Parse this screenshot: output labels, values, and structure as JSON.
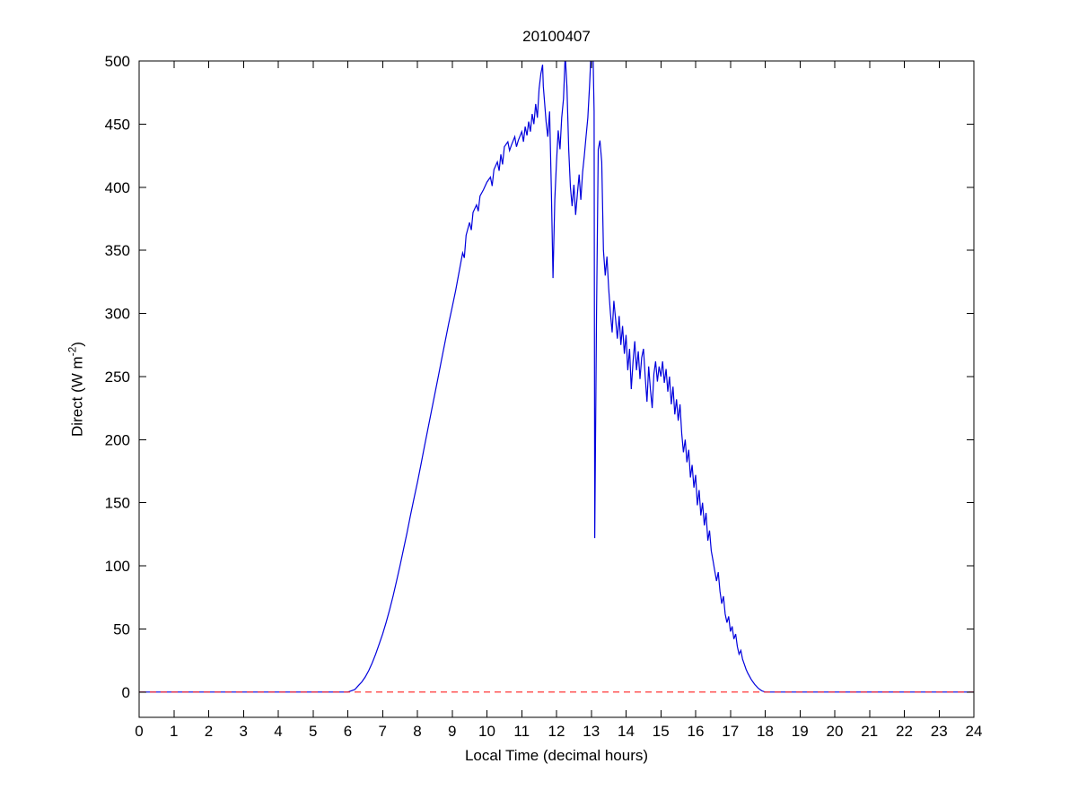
{
  "figure": {
    "ylabel_pre": "Direct (W m",
    "ylabel_sup": "-2",
    "ylabel_post": ")"
  },
  "chart_data": {
    "type": "line",
    "title": "20100407",
    "xlabel": "Local Time (decimal hours)",
    "ylabel": "Direct (W m^-2)",
    "xlim": [
      0,
      24
    ],
    "ylim": [
      -20,
      500
    ],
    "x_ticks": [
      0,
      1,
      2,
      3,
      4,
      5,
      6,
      7,
      8,
      9,
      10,
      11,
      12,
      13,
      14,
      15,
      16,
      17,
      18,
      19,
      20,
      21,
      22,
      23,
      24
    ],
    "y_ticks": [
      0,
      50,
      100,
      150,
      200,
      250,
      300,
      350,
      400,
      450,
      500
    ],
    "grid": false,
    "legend": "none",
    "series": [
      {
        "name": "direct-irradiance",
        "color": "#0000dd",
        "style": "solid",
        "points": [
          [
            0,
            0
          ],
          [
            0.3,
            0
          ],
          [
            0.6,
            0
          ],
          [
            0.9,
            0
          ],
          [
            1.2,
            0
          ],
          [
            1.5,
            0
          ],
          [
            1.8,
            0
          ],
          [
            2.1,
            0
          ],
          [
            2.4,
            0
          ],
          [
            2.7,
            0
          ],
          [
            3.0,
            0
          ],
          [
            3.3,
            0
          ],
          [
            3.6,
            0
          ],
          [
            3.9,
            0
          ],
          [
            4.2,
            0
          ],
          [
            4.5,
            0
          ],
          [
            4.8,
            0
          ],
          [
            5.1,
            0
          ],
          [
            5.4,
            0
          ],
          [
            5.7,
            0
          ],
          [
            5.9,
            0
          ],
          [
            6.0,
            0
          ],
          [
            6.1,
            1
          ],
          [
            6.2,
            2
          ],
          [
            6.3,
            5
          ],
          [
            6.4,
            8
          ],
          [
            6.5,
            12
          ],
          [
            6.6,
            17
          ],
          [
            6.7,
            23
          ],
          [
            6.8,
            30
          ],
          [
            6.9,
            38
          ],
          [
            7.0,
            46
          ],
          [
            7.1,
            55
          ],
          [
            7.2,
            65
          ],
          [
            7.3,
            76
          ],
          [
            7.4,
            88
          ],
          [
            7.5,
            100
          ],
          [
            7.6,
            113
          ],
          [
            7.7,
            126
          ],
          [
            7.8,
            140
          ],
          [
            7.9,
            153
          ],
          [
            8.0,
            166
          ],
          [
            8.1,
            180
          ],
          [
            8.2,
            194
          ],
          [
            8.3,
            208
          ],
          [
            8.4,
            222
          ],
          [
            8.5,
            236
          ],
          [
            8.6,
            250
          ],
          [
            8.7,
            264
          ],
          [
            8.8,
            278
          ],
          [
            8.9,
            292
          ],
          [
            9.0,
            305
          ],
          [
            9.1,
            318
          ],
          [
            9.2,
            333
          ],
          [
            9.3,
            348
          ],
          [
            9.35,
            344
          ],
          [
            9.4,
            362
          ],
          [
            9.5,
            372
          ],
          [
            9.55,
            366
          ],
          [
            9.6,
            380
          ],
          [
            9.7,
            386
          ],
          [
            9.75,
            381
          ],
          [
            9.8,
            393
          ],
          [
            9.9,
            398
          ],
          [
            10.0,
            404
          ],
          [
            10.1,
            408
          ],
          [
            10.15,
            401
          ],
          [
            10.2,
            414
          ],
          [
            10.3,
            420
          ],
          [
            10.35,
            413
          ],
          [
            10.4,
            426
          ],
          [
            10.45,
            418
          ],
          [
            10.5,
            432
          ],
          [
            10.6,
            436
          ],
          [
            10.65,
            429
          ],
          [
            10.7,
            433
          ],
          [
            10.8,
            440
          ],
          [
            10.85,
            432
          ],
          [
            10.9,
            437
          ],
          [
            11.0,
            444
          ],
          [
            11.05,
            436
          ],
          [
            11.1,
            448
          ],
          [
            11.15,
            441
          ],
          [
            11.2,
            452
          ],
          [
            11.25,
            444
          ],
          [
            11.3,
            458
          ],
          [
            11.35,
            450
          ],
          [
            11.4,
            466
          ],
          [
            11.45,
            455
          ],
          [
            11.5,
            478
          ],
          [
            11.55,
            490
          ],
          [
            11.6,
            497
          ],
          [
            11.62,
            480
          ],
          [
            11.65,
            470
          ],
          [
            11.7,
            452
          ],
          [
            11.75,
            440
          ],
          [
            11.8,
            460
          ],
          [
            11.85,
            400
          ],
          [
            11.9,
            328
          ],
          [
            11.95,
            390
          ],
          [
            12.0,
            420
          ],
          [
            12.05,
            445
          ],
          [
            12.1,
            430
          ],
          [
            12.15,
            455
          ],
          [
            12.2,
            470
          ],
          [
            12.25,
            505
          ],
          [
            12.3,
            480
          ],
          [
            12.35,
            430
          ],
          [
            12.4,
            400
          ],
          [
            12.45,
            385
          ],
          [
            12.5,
            402
          ],
          [
            12.55,
            378
          ],
          [
            12.6,
            395
          ],
          [
            12.65,
            410
          ],
          [
            12.7,
            390
          ],
          [
            12.75,
            412
          ],
          [
            12.8,
            425
          ],
          [
            12.85,
            440
          ],
          [
            12.9,
            455
          ],
          [
            12.95,
            480
          ],
          [
            13.0,
            512
          ],
          [
            13.05,
            506
          ],
          [
            13.08,
            460
          ],
          [
            13.1,
            122
          ],
          [
            13.15,
            300
          ],
          [
            13.2,
            430
          ],
          [
            13.25,
            437
          ],
          [
            13.3,
            420
          ],
          [
            13.35,
            350
          ],
          [
            13.4,
            330
          ],
          [
            13.45,
            345
          ],
          [
            13.5,
            320
          ],
          [
            13.55,
            300
          ],
          [
            13.6,
            285
          ],
          [
            13.65,
            310
          ],
          [
            13.7,
            295
          ],
          [
            13.75,
            280
          ],
          [
            13.8,
            298
          ],
          [
            13.85,
            275
          ],
          [
            13.9,
            290
          ],
          [
            13.95,
            268
          ],
          [
            14.0,
            283
          ],
          [
            14.05,
            255
          ],
          [
            14.1,
            272
          ],
          [
            14.15,
            240
          ],
          [
            14.2,
            262
          ],
          [
            14.25,
            278
          ],
          [
            14.3,
            255
          ],
          [
            14.35,
            270
          ],
          [
            14.4,
            248
          ],
          [
            14.45,
            265
          ],
          [
            14.5,
            272
          ],
          [
            14.55,
            250
          ],
          [
            14.6,
            230
          ],
          [
            14.65,
            258
          ],
          [
            14.7,
            240
          ],
          [
            14.75,
            225
          ],
          [
            14.8,
            252
          ],
          [
            14.85,
            262
          ],
          [
            14.9,
            246
          ],
          [
            14.95,
            258
          ],
          [
            15.0,
            250
          ],
          [
            15.05,
            262
          ],
          [
            15.1,
            245
          ],
          [
            15.15,
            256
          ],
          [
            15.2,
            238
          ],
          [
            15.25,
            250
          ],
          [
            15.3,
            228
          ],
          [
            15.35,
            242
          ],
          [
            15.4,
            220
          ],
          [
            15.45,
            232
          ],
          [
            15.5,
            215
          ],
          [
            15.55,
            228
          ],
          [
            15.6,
            205
          ],
          [
            15.65,
            190
          ],
          [
            15.7,
            200
          ],
          [
            15.75,
            182
          ],
          [
            15.8,
            192
          ],
          [
            15.85,
            170
          ],
          [
            15.9,
            180
          ],
          [
            15.95,
            162
          ],
          [
            16.0,
            172
          ],
          [
            16.05,
            148
          ],
          [
            16.1,
            160
          ],
          [
            16.15,
            140
          ],
          [
            16.2,
            150
          ],
          [
            16.25,
            132
          ],
          [
            16.3,
            142
          ],
          [
            16.35,
            120
          ],
          [
            16.4,
            128
          ],
          [
            16.45,
            112
          ],
          [
            16.5,
            104
          ],
          [
            16.55,
            96
          ],
          [
            16.6,
            88
          ],
          [
            16.65,
            95
          ],
          [
            16.7,
            80
          ],
          [
            16.75,
            70
          ],
          [
            16.8,
            76
          ],
          [
            16.85,
            62
          ],
          [
            16.9,
            55
          ],
          [
            16.95,
            60
          ],
          [
            17.0,
            48
          ],
          [
            17.05,
            52
          ],
          [
            17.1,
            42
          ],
          [
            17.15,
            46
          ],
          [
            17.2,
            36
          ],
          [
            17.25,
            30
          ],
          [
            17.3,
            33
          ],
          [
            17.35,
            26
          ],
          [
            17.4,
            22
          ],
          [
            17.45,
            18
          ],
          [
            17.5,
            15
          ],
          [
            17.6,
            10
          ],
          [
            17.7,
            6
          ],
          [
            17.8,
            3
          ],
          [
            17.9,
            1
          ],
          [
            18.0,
            0
          ],
          [
            18.3,
            0
          ],
          [
            18.6,
            0
          ],
          [
            19.0,
            0
          ],
          [
            19.5,
            0
          ],
          [
            20.0,
            0
          ],
          [
            20.5,
            0
          ],
          [
            21.0,
            0
          ],
          [
            21.5,
            0
          ],
          [
            22.0,
            0
          ],
          [
            22.5,
            0
          ],
          [
            23.0,
            0
          ],
          [
            23.5,
            0
          ],
          [
            24.0,
            0
          ]
        ]
      },
      {
        "name": "zero-reference-line",
        "color": "#ff2020",
        "style": "dashed",
        "points": [
          [
            0,
            0
          ],
          [
            24,
            0
          ]
        ]
      }
    ]
  }
}
